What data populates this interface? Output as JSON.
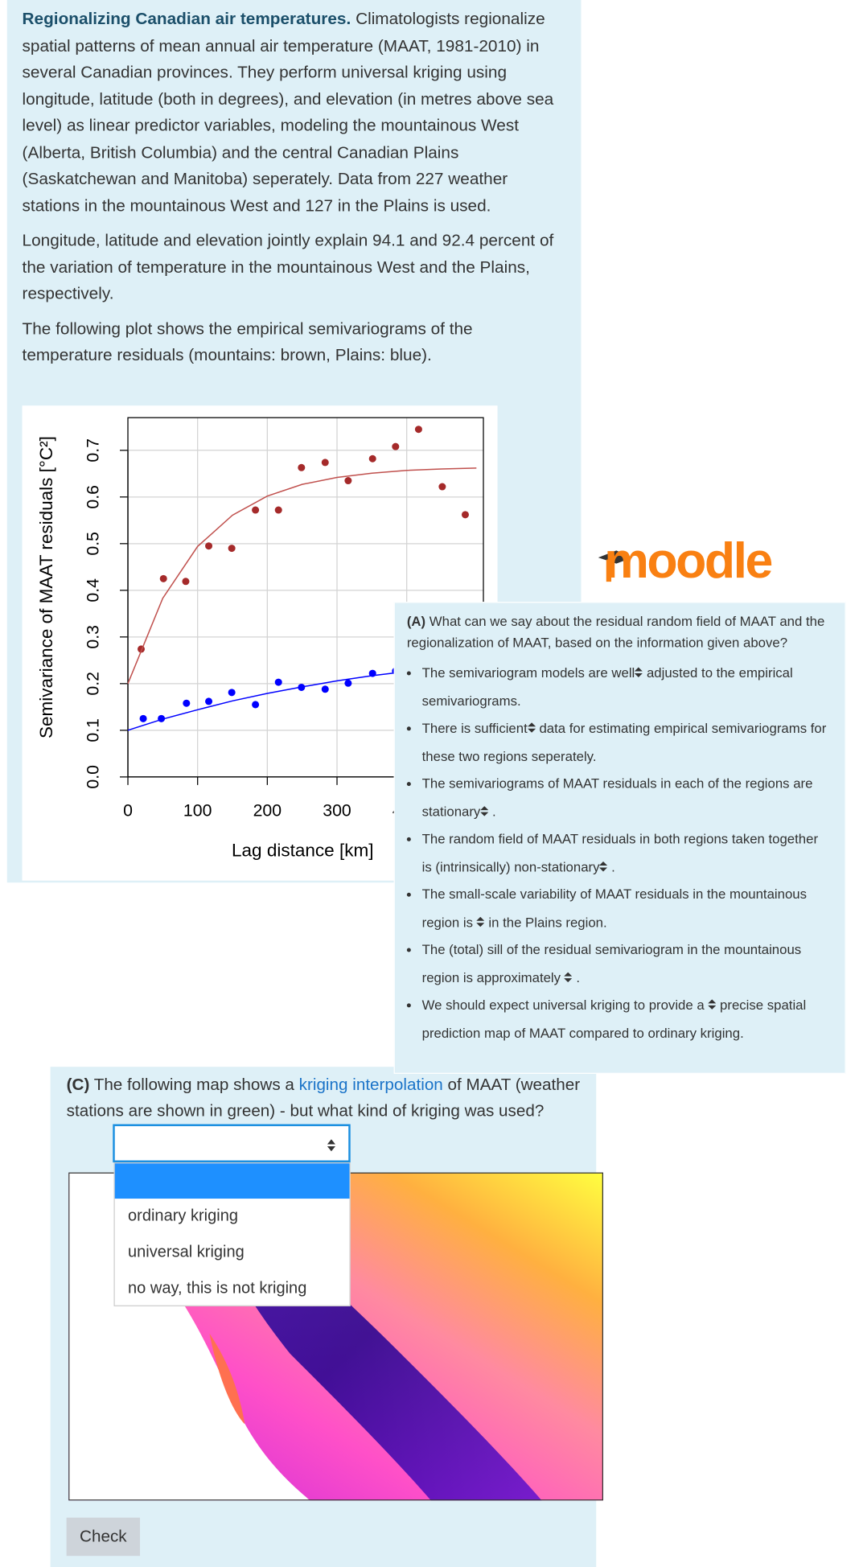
{
  "intro": {
    "title": "Regionalizing Canadian air temperatures.",
    "paragraphs": [
      "Climatologists regionalize spatial patterns of mean annual air temperature (MAAT, 1981-2010) in several Canadian provinces. They perform universal kriging using longitude, latitude (both in degrees), and elevation (in metres above sea level) as linear predictor variables, modeling the mountainous West (Alberta, British Columbia) and the central Canadian Plains (Saskatchewan and Manitoba) seperately. Data from 227 weather stations in the mountainous West and 127 in the Plains is used.",
      "Longitude, latitude and elevation jointly explain 94.1 and 92.4 percent of the variation of temperature in the mountainous West and the Plains, respectively.",
      "The following plot shows the empirical semivariograms of the temperature residuals (mountains: brown, Plains: blue)."
    ]
  },
  "chart_data": {
    "type": "scatter",
    "x_label": "Lag distance [km]",
    "y_label": "Semivariance of MAAT residuals [°C²]",
    "xlim": [
      0,
      510
    ],
    "ylim": [
      0,
      0.77
    ],
    "xticks": [
      0,
      100,
      200,
      300,
      400
    ],
    "yticks": [
      {
        "value": 0,
        "label": "0.0"
      },
      0.1,
      0.2,
      0.3,
      0.4,
      0.5,
      0.6,
      0.7
    ],
    "grid": true,
    "series": [
      {
        "color": "#a52a2a",
        "mode": "markers",
        "x": [
          19,
          51,
          83,
          116,
          149,
          183,
          216,
          249,
          283,
          316,
          351,
          384,
          417,
          451,
          484
        ],
        "values": [
          0.274,
          0.425,
          0.419,
          0.495,
          0.49,
          0.572,
          0.572,
          0.663,
          0.674,
          0.635,
          0.682,
          0.708,
          0.745,
          0.622,
          0.562
        ]
      },
      {
        "color": "#0000ff",
        "mode": "markers",
        "x": [
          22,
          48,
          84,
          116,
          149,
          183,
          216,
          249,
          283,
          316,
          351,
          384
        ],
        "values": [
          0.125,
          0.125,
          0.158,
          0.162,
          0.181,
          0.155,
          0.203,
          0.192,
          0.188,
          0.201,
          0.222,
          0.227
        ]
      },
      {
        "color": "#c0504d",
        "mode": "lines",
        "x": [
          0,
          50,
          100,
          150,
          200,
          250,
          300,
          350,
          400,
          450,
          500
        ],
        "values": [
          0.2,
          0.383,
          0.494,
          0.561,
          0.602,
          0.627,
          0.642,
          0.651,
          0.657,
          0.66,
          0.662
        ]
      },
      {
        "color": "#0000ff",
        "mode": "lines",
        "x": [
          0,
          50,
          100,
          150,
          200,
          250,
          300,
          350,
          400,
          450,
          500
        ],
        "values": [
          0.1,
          0.124,
          0.144,
          0.163,
          0.179,
          0.193,
          0.206,
          0.217,
          0.226,
          0.235,
          0.242
        ]
      }
    ]
  },
  "logo": "moodle",
  "question_a": {
    "label": "(A)",
    "text": "What can we say about the residual random field of MAAT and the regionalization of MAAT, based on the information given above?",
    "items": [
      {
        "before": "The semivariogram models are",
        "select": "well",
        "after": "adjusted to the empirical semivariograms."
      },
      {
        "before": "There is",
        "select": "sufficient",
        "after": "data for estimating empirical semivariograms for these two regions seperately."
      },
      {
        "before": "The semivariograms of MAAT residuals in each of the regions are",
        "select": "stationary",
        "after": "."
      },
      {
        "before": "The random field of MAAT residuals in both regions taken together is (intrinsically)",
        "select": "non-stationary",
        "after": "."
      },
      {
        "before": "The small-scale variability of MAAT residuals in the mountainous region is",
        "after": "in the Plains region."
      },
      {
        "before": "The (total) sill of the residual semivariogram in the mountainous region is approximately",
        "after": "."
      },
      {
        "before": "We should expect universal kriging to provide a",
        "after": "precise spatial prediction map of MAAT compared to ordinary kriging."
      }
    ]
  },
  "question_c": {
    "label": "(C)",
    "text_before": "The following map shows a",
    "link": "kriging interpolation",
    "text_after": "of MAAT (weather stations are shown in green) - but what kind of kriging was used?",
    "options": [
      "ordinary kriging",
      "universal kriging",
      "no way, this is not kriging"
    ],
    "button": "Check"
  }
}
